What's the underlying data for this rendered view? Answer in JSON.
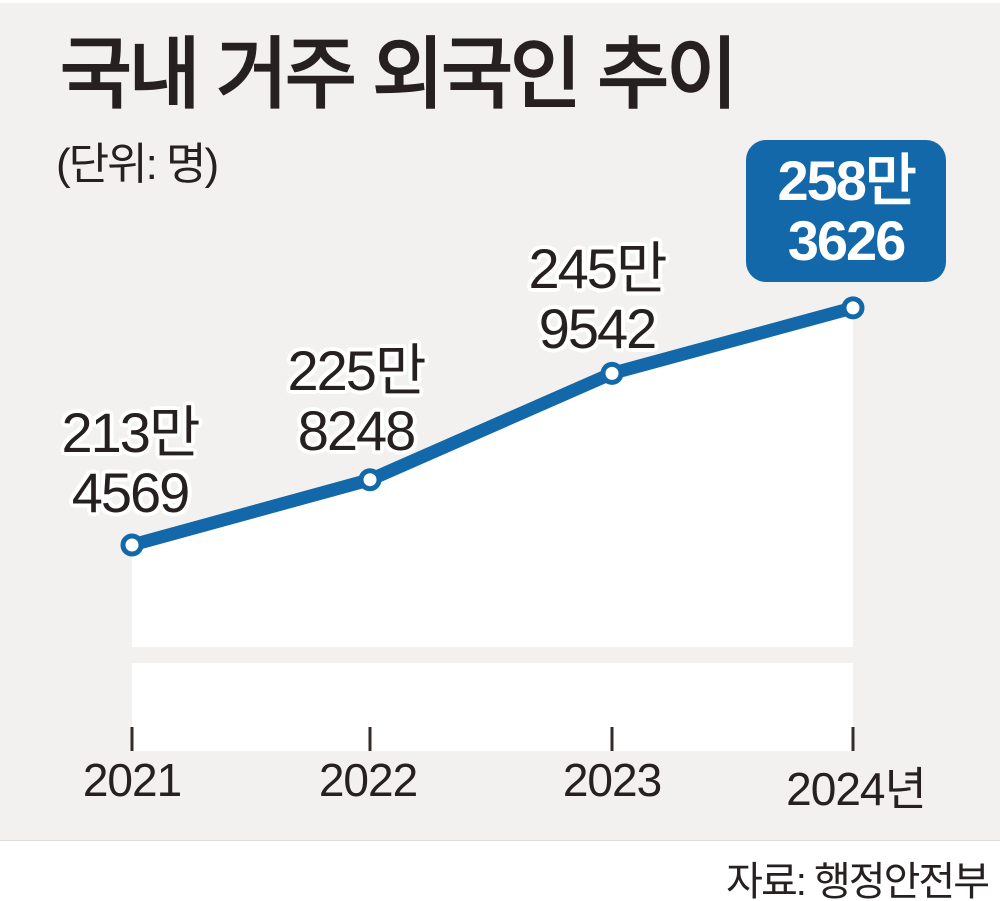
{
  "title": "국내 거주 외국인 추이",
  "unit_label": "(단위: 명)",
  "source_text": "자료: 행정안전부",
  "colors": {
    "accent_blue": "#1268a9",
    "background_gray": "#f2f1f0",
    "ink": "#262020",
    "plot_white": "#ffffff",
    "tick": "#332d2b"
  },
  "chart_data": {
    "type": "line",
    "title": "국내 거주 외국인 추이",
    "unit": "명",
    "categories": [
      "2021",
      "2022",
      "2023",
      "2024"
    ],
    "values": [
      2134569,
      2258248,
      2459542,
      2583626
    ],
    "x_tick_labels": [
      "2021",
      "2022",
      "2023",
      "2024년"
    ],
    "point_labels": [
      {
        "l1": "213만",
        "l2": "4569"
      },
      {
        "l1": "225만",
        "l2": "8248"
      },
      {
        "l1": "245만",
        "l2": "9542"
      },
      {
        "l1": "258만",
        "l2": "3626"
      }
    ],
    "callout": {
      "l1": "258만",
      "l2": "3626"
    },
    "ylim": [
      2100000,
      2650000
    ],
    "axis_break": true,
    "grid": false,
    "legend": "none"
  }
}
